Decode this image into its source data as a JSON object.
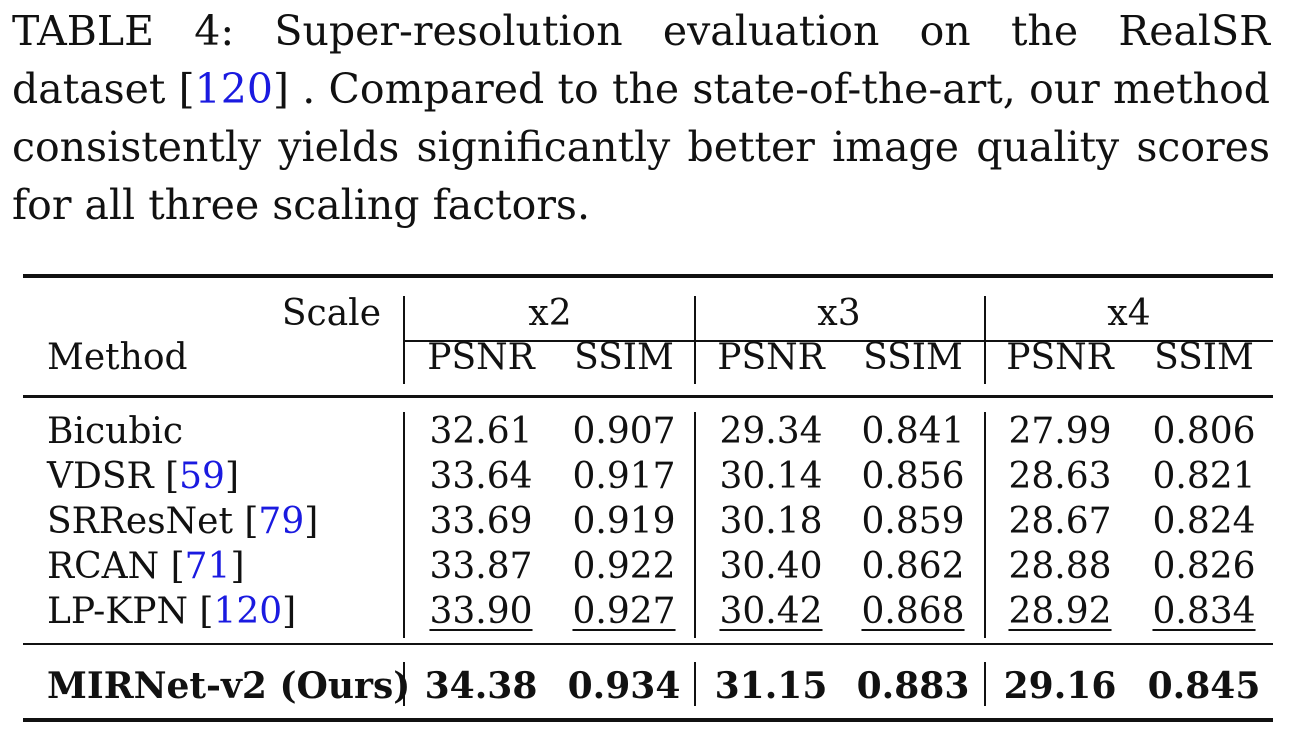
{
  "caption": {
    "prefix": "TABLE 4: Super-resolution evaluation on the RealSR dataset [",
    "ref": "120",
    "suffix": "] . Compared to the state-of-the-art, our method consistently yields significantly better image quality scores for all three scaling factors."
  },
  "table": {
    "scale_label": "Scale",
    "method_label": "Method",
    "scales": [
      "x2",
      "x3",
      "x4"
    ],
    "metrics": [
      "PSNR",
      "SSIM"
    ],
    "rows": [
      {
        "name": "Bicubic",
        "ref": "",
        "values": [
          "32.61",
          "0.907",
          "29.34",
          "0.841",
          "27.99",
          "0.806"
        ]
      },
      {
        "name": "VDSR [",
        "ref": "59",
        "values": [
          "33.64",
          "0.917",
          "30.14",
          "0.856",
          "28.63",
          "0.821"
        ]
      },
      {
        "name": "SRResNet [",
        "ref": "79",
        "values": [
          "33.69",
          "0.919",
          "30.18",
          "0.859",
          "28.67",
          "0.824"
        ]
      },
      {
        "name": "RCAN [",
        "ref": "71",
        "values": [
          "33.87",
          "0.922",
          "30.40",
          "0.862",
          "28.88",
          "0.826"
        ]
      },
      {
        "name": "LP-KPN [",
        "ref": "120",
        "values": [
          "33.90",
          "0.927",
          "30.42",
          "0.868",
          "28.92",
          "0.834"
        ]
      }
    ],
    "ours": {
      "name": "MIRNet-v2 (Ours)",
      "values": [
        "34.38",
        "0.934",
        "31.15",
        "0.883",
        "29.16",
        "0.845"
      ]
    }
  }
}
